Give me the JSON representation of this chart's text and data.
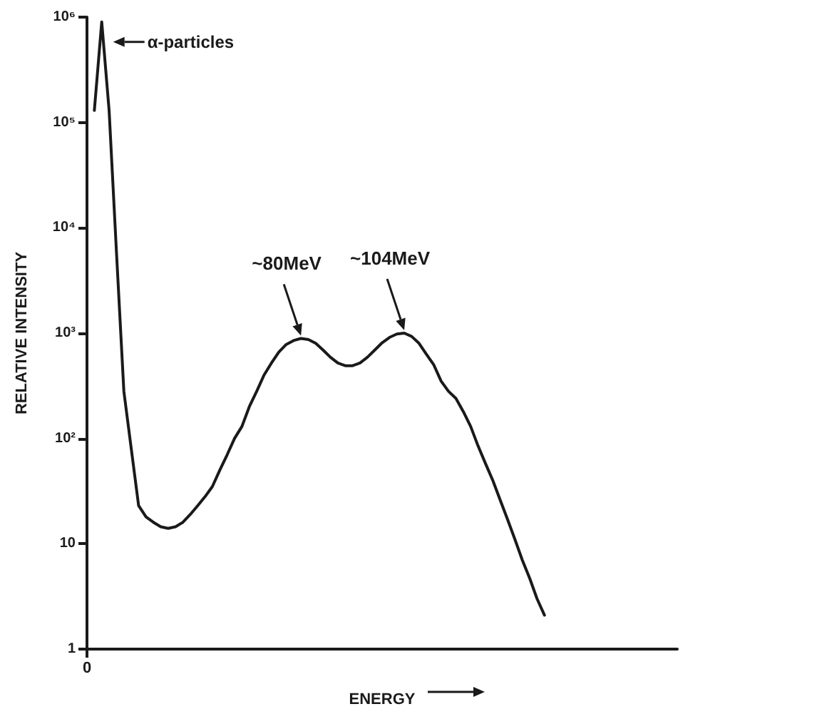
{
  "chart_data": {
    "type": "line",
    "xlabel": "ENERGY",
    "ylabel": "RELATIVE INTENSITY",
    "categories": [
      "0",
      null,
      null,
      null,
      null,
      null,
      null,
      null,
      null,
      null,
      null,
      null,
      null,
      null,
      null,
      null,
      null,
      null,
      null,
      null,
      null,
      null,
      null,
      null,
      null,
      null,
      null,
      null,
      null,
      null,
      null,
      null,
      null,
      null,
      null,
      null,
      null,
      null,
      null,
      null,
      null,
      null,
      null,
      null,
      null,
      null,
      null,
      null,
      null,
      null,
      null,
      null,
      null,
      null,
      null,
      null,
      null,
      null,
      null,
      null,
      null,
      null,
      null,
      null,
      null,
      null,
      null,
      null,
      null,
      null,
      null,
      null,
      null,
      null,
      null,
      null,
      null,
      null,
      null,
      null,
      null
    ],
    "series": [
      {
        "color": "#1a1a1a",
        "values": [
          null,
          130000,
          900000,
          130000,
          5800,
          280,
          80,
          23,
          18,
          16,
          14.5,
          14,
          14.5,
          16,
          19,
          23,
          28,
          35,
          50,
          70,
          100,
          130,
          200,
          280,
          400,
          520,
          660,
          780,
          850,
          890,
          870,
          800,
          690,
          590,
          520,
          490,
          490,
          520,
          590,
          690,
          810,
          910,
          980,
          1000,
          930,
          800,
          630,
          500,
          350,
          280,
          240,
          180,
          130,
          85,
          58,
          40,
          26,
          17,
          11,
          7,
          4.7,
          3,
          2.1,
          null,
          null,
          null,
          null,
          null,
          null,
          null,
          null,
          null,
          null,
          null,
          null,
          null,
          null,
          null,
          null,
          null,
          null
        ]
      }
    ],
    "log": "y",
    "ylim": [
      1,
      1000000
    ],
    "yticks": [
      1,
      10,
      {
        "value": 100,
        "label": "10²"
      },
      {
        "value": 1000,
        "label": "10³"
      },
      {
        "value": 10000,
        "label": "10⁴"
      },
      {
        "value": 100000,
        "label": "10⁵"
      },
      {
        "value": 1000000,
        "label": "10⁶"
      }
    ],
    "grid": false,
    "marker": "none",
    "line_style": "solid",
    "annotations": [
      "α-particles",
      "~80MeV",
      "~104MeV"
    ]
  }
}
